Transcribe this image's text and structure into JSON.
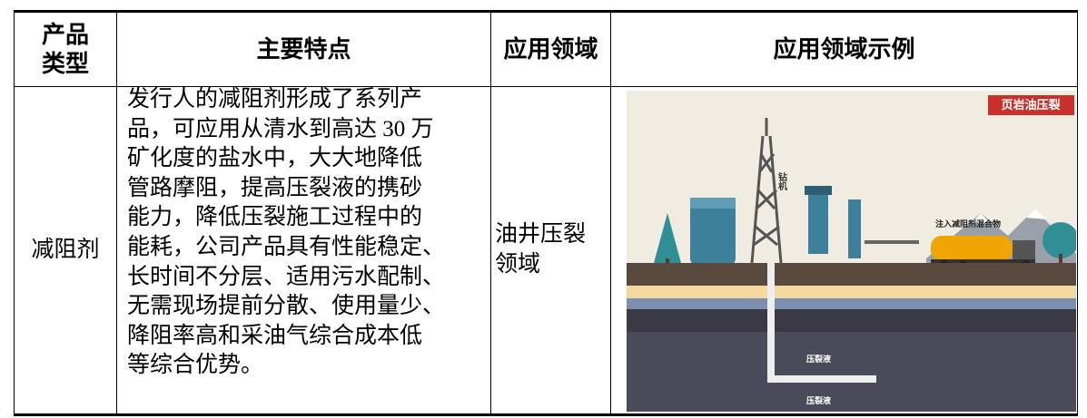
{
  "table": {
    "header": [
      "产品类型",
      "主要特点",
      "应用领域",
      "应用领域示例"
    ],
    "row": {
      "product_type": "减阻剂",
      "features": [
        "发行人的减阻剂形成了系列产",
        "品，可应用从清水到高达 30 万",
        "矿化度的盐水中，大大地降低",
        "管路摩阻，提高压裂液的携砂",
        "能力，降低压裂施工过程中的",
        "能耗，公司产品具有性能稳定、",
        "长时间不分层、适用污水配制、",
        "无需现场提前分散、使用量少、",
        "降阻率高和采油气综合成本低",
        "等综合优势。"
      ],
      "application": "油井压裂领域"
    }
  },
  "illustration": {
    "label_title": "页岩油压裂",
    "label_drill": "钻机",
    "label_inject": "注入减阻剂混合物",
    "label_fluid_top": "压裂液",
    "label_fluid_bottom": "压裂液"
  }
}
